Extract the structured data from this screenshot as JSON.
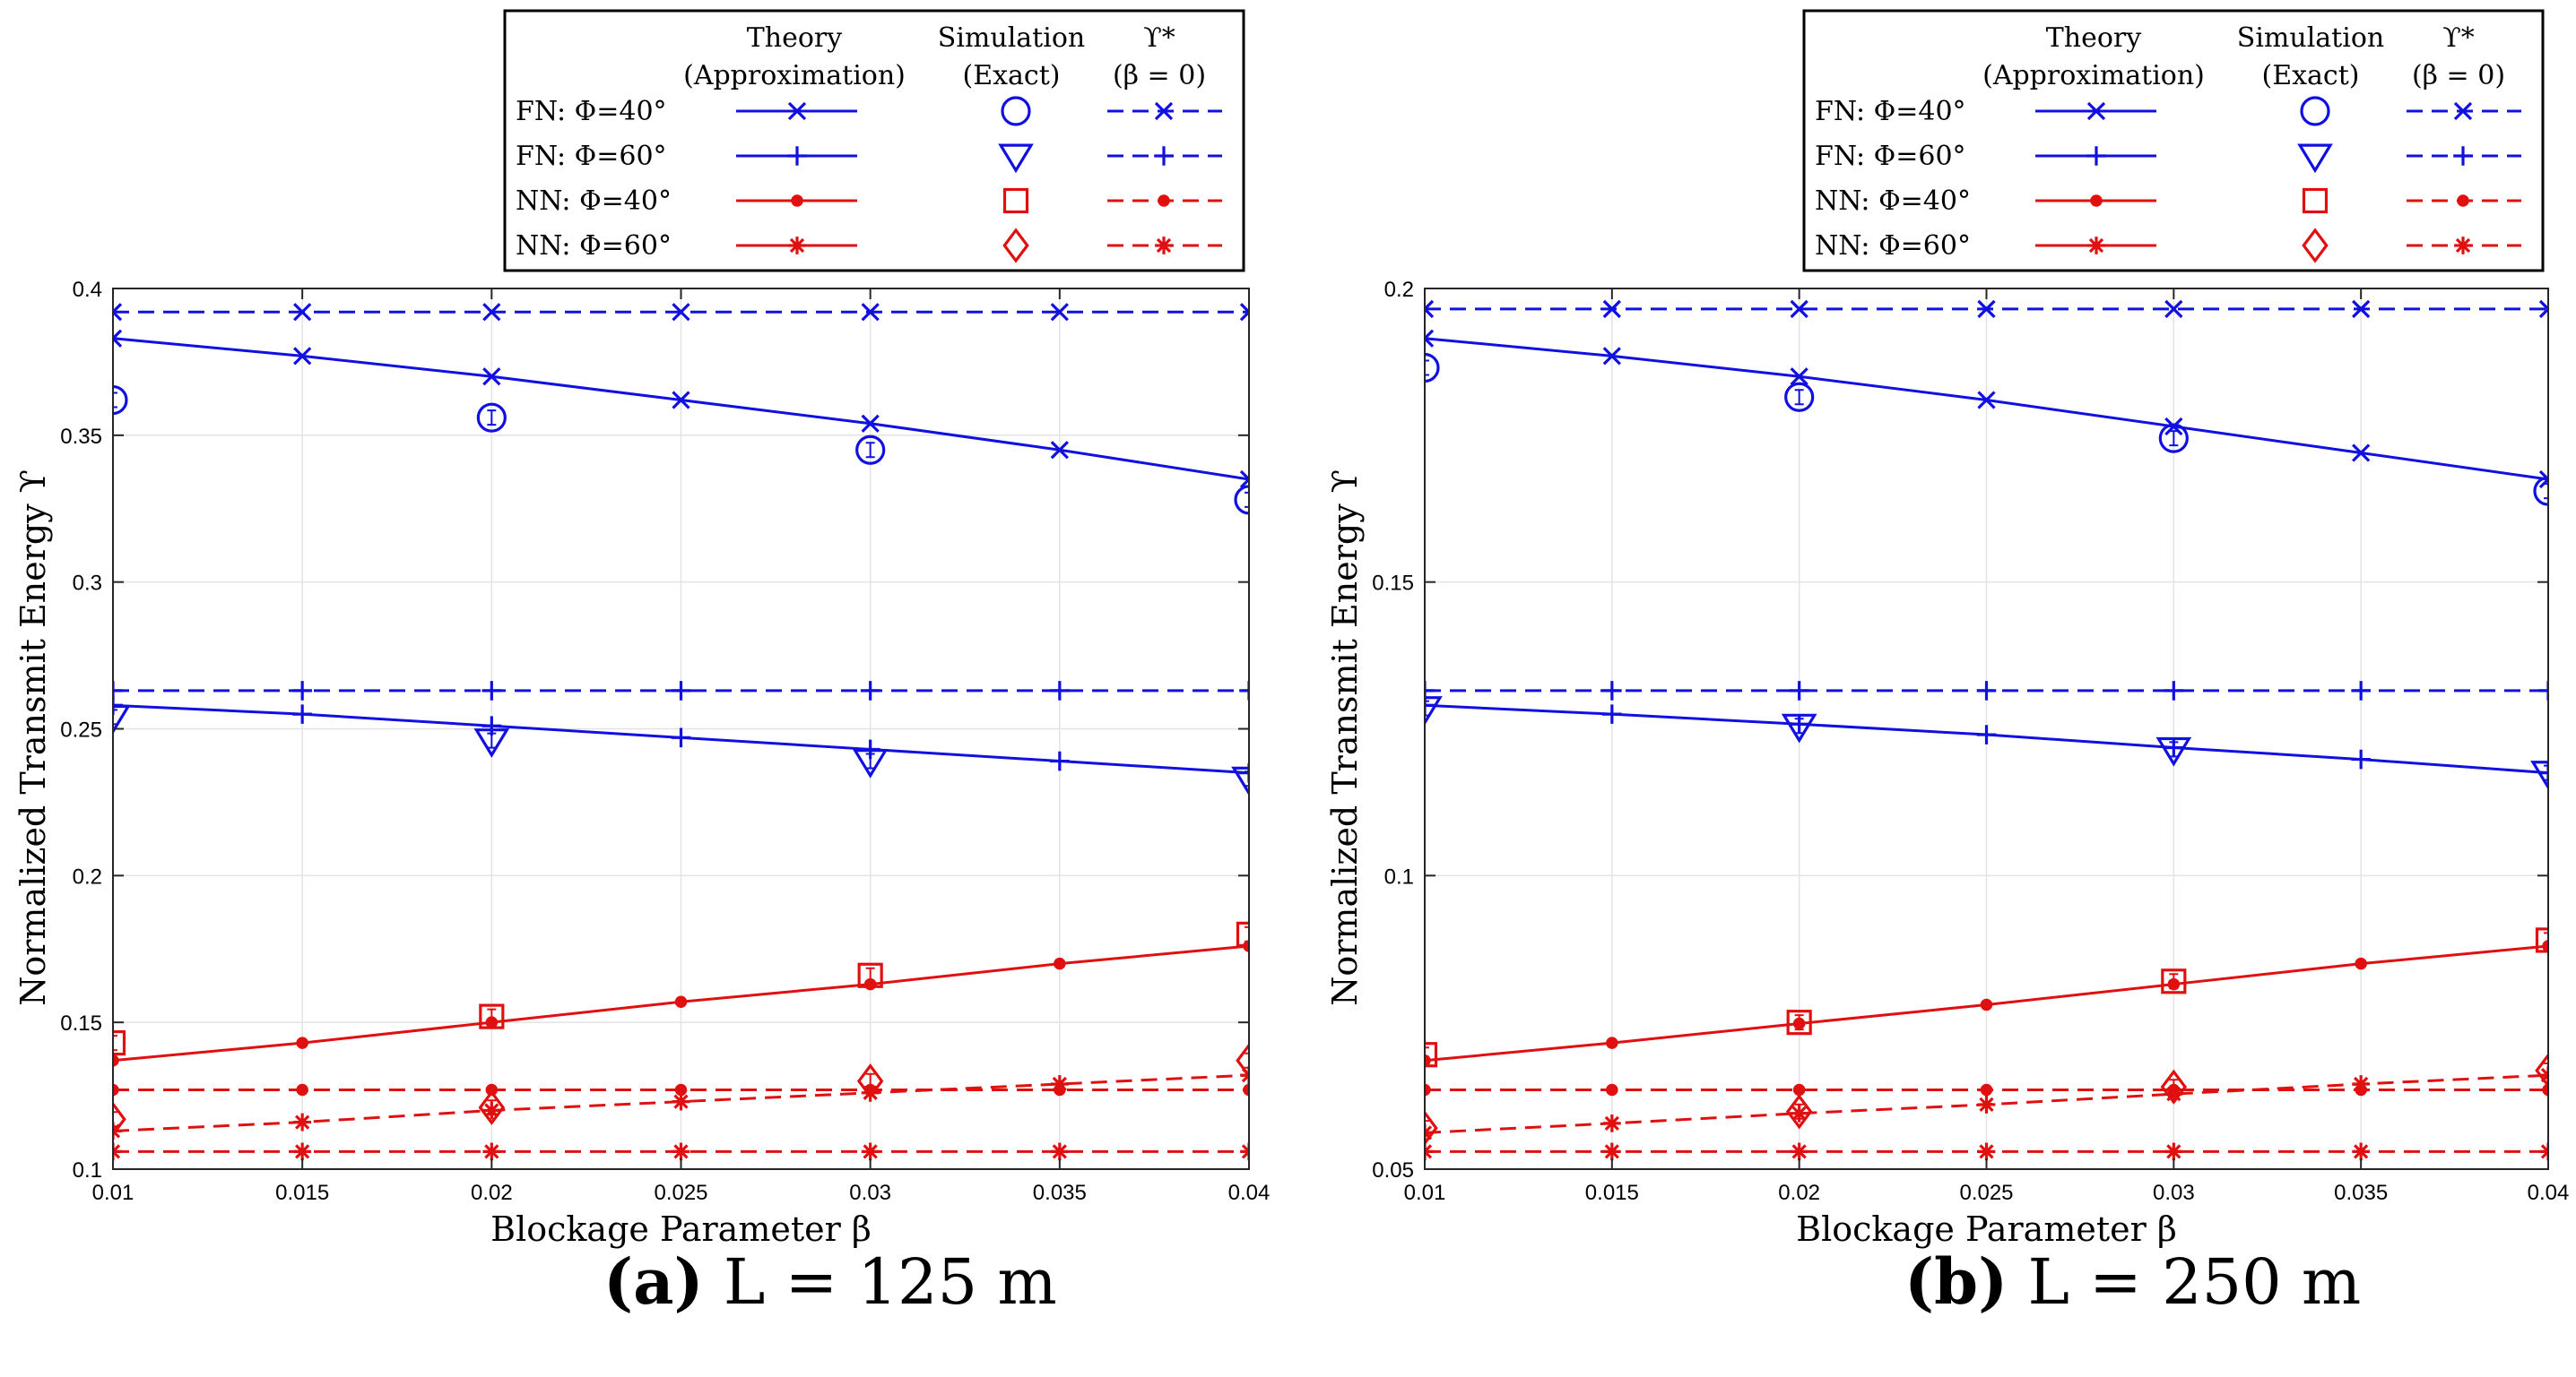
{
  "legend_headers": {
    "theory": [
      "Theory",
      "(Approximation)"
    ],
    "simulation": [
      "Simulation",
      "(Exact)"
    ],
    "ideal": [
      "ϒ*",
      "(β = 0)"
    ]
  },
  "legend_entries": [
    {
      "label": "FN: Φ=40°",
      "color": "#1010e0",
      "theory_marker": "x",
      "sim_marker": "circle",
      "ideal_marker": "x"
    },
    {
      "label": "FN: Φ=60°",
      "color": "#1010e0",
      "theory_marker": "plus",
      "sim_marker": "triangle-down",
      "ideal_marker": "plus"
    },
    {
      "label": "NN: Φ=40°",
      "color": "#e01010",
      "theory_marker": "dot",
      "sim_marker": "square",
      "ideal_marker": "dot"
    },
    {
      "label": "NN: Φ=60°",
      "color": "#e01010",
      "theory_marker": "star",
      "sim_marker": "diamond",
      "ideal_marker": "star"
    }
  ],
  "chart_data": [
    {
      "type": "line",
      "caption_letter": "(a)",
      "caption_rest": "L = 125 m",
      "xlabel": "Blockage Parameter β",
      "ylabel": "Normalized Transmit Energy ϒ",
      "xlim": [
        0.01,
        0.04
      ],
      "ylim": [
        0.1,
        0.4
      ],
      "xticks": [
        0.01,
        0.015,
        0.02,
        0.025,
        0.03,
        0.035,
        0.04
      ],
      "xtick_labels": [
        "0.01",
        "0.015",
        "0.02",
        "0.025",
        "0.03",
        "0.035",
        "0.04"
      ],
      "yticks": [
        0.1,
        0.15,
        0.2,
        0.25,
        0.3,
        0.35,
        0.4
      ],
      "ytick_labels": [
        "0.1",
        "0.15",
        "0.2",
        "0.25",
        "0.3",
        "0.35",
        "0.4"
      ],
      "grid": true,
      "x": [
        0.01,
        0.015,
        0.02,
        0.025,
        0.03,
        0.035,
        0.04
      ],
      "series": [
        {
          "name": "FN: Φ=40° Theory",
          "color": "#1010e0",
          "style": "solid",
          "marker": "x",
          "values": [
            0.383,
            0.377,
            0.37,
            0.362,
            0.354,
            0.345,
            0.335
          ]
        },
        {
          "name": "FN: Φ=60° Theory",
          "color": "#1010e0",
          "style": "solid",
          "marker": "plus",
          "values": [
            0.258,
            0.255,
            0.251,
            0.247,
            0.243,
            0.239,
            0.235
          ]
        },
        {
          "name": "NN: Φ=40° Theory",
          "color": "#e01010",
          "style": "solid",
          "marker": "dot",
          "values": [
            0.137,
            0.143,
            0.15,
            0.157,
            0.163,
            0.17,
            0.176
          ]
        },
        {
          "name": "NN: Φ=60° Theory",
          "color": "#e01010",
          "style": "dashed",
          "marker": "star",
          "values": [
            0.113,
            0.116,
            0.12,
            0.123,
            0.126,
            0.129,
            0.132
          ]
        },
        {
          "name": "FN: Φ=40° ϒ*",
          "color": "#1010e0",
          "style": "dashed",
          "marker": "x",
          "values": [
            0.392,
            0.392,
            0.392,
            0.392,
            0.392,
            0.392,
            0.392
          ]
        },
        {
          "name": "FN: Φ=60° ϒ*",
          "color": "#1010e0",
          "style": "dashed",
          "marker": "plus",
          "values": [
            0.263,
            0.263,
            0.263,
            0.263,
            0.263,
            0.263,
            0.263
          ]
        },
        {
          "name": "NN: Φ=40° ϒ*",
          "color": "#e01010",
          "style": "dashed",
          "marker": "dot",
          "values": [
            0.127,
            0.127,
            0.127,
            0.127,
            0.127,
            0.127,
            0.127
          ]
        },
        {
          "name": "NN: Φ=60° ϒ*",
          "color": "#e01010",
          "style": "dashed",
          "marker": "star",
          "values": [
            0.106,
            0.106,
            0.106,
            0.106,
            0.106,
            0.106,
            0.106
          ]
        }
      ],
      "simulation": [
        {
          "name": "FN: Φ=40° Simulation",
          "color": "#1010e0",
          "marker": "circle",
          "x": [
            0.01,
            0.02,
            0.03,
            0.04
          ],
          "values": [
            0.362,
            0.356,
            0.345,
            0.328
          ]
        },
        {
          "name": "FN: Φ=60° Simulation",
          "color": "#1010e0",
          "marker": "triangle-down",
          "x": [
            0.01,
            0.02,
            0.03,
            0.04
          ],
          "values": [
            0.254,
            0.246,
            0.239,
            0.233
          ]
        },
        {
          "name": "NN: Φ=40° Simulation",
          "color": "#e01010",
          "marker": "square",
          "x": [
            0.01,
            0.02,
            0.03,
            0.04
          ],
          "values": [
            0.143,
            0.152,
            0.166,
            0.18
          ]
        },
        {
          "name": "NN: Φ=60° Simulation",
          "color": "#e01010",
          "marker": "diamond",
          "x": [
            0.01,
            0.02,
            0.03,
            0.04
          ],
          "values": [
            0.117,
            0.121,
            0.13,
            0.137
          ]
        }
      ]
    },
    {
      "type": "line",
      "caption_letter": "(b)",
      "caption_rest": "L = 250 m",
      "xlabel": "Blockage Parameter β",
      "ylabel": "Normalized Transmit Energy ϒ",
      "xlim": [
        0.01,
        0.04
      ],
      "ylim": [
        0.05,
        0.2
      ],
      "xticks": [
        0.01,
        0.015,
        0.02,
        0.025,
        0.03,
        0.035,
        0.04
      ],
      "xtick_labels": [
        "0.01",
        "0.015",
        "0.02",
        "0.025",
        "0.03",
        "0.035",
        "0.04"
      ],
      "yticks": [
        0.05,
        0.1,
        0.15,
        0.2
      ],
      "ytick_labels": [
        "0.05",
        "0.1",
        "0.15",
        "0.2"
      ],
      "grid": true,
      "x": [
        0.01,
        0.015,
        0.02,
        0.025,
        0.03,
        0.035,
        0.04
      ],
      "series": [
        {
          "name": "FN: Φ=40° Theory",
          "color": "#1010e0",
          "style": "solid",
          "marker": "x",
          "values": [
            0.1915,
            0.1885,
            0.185,
            0.181,
            0.1765,
            0.172,
            0.1675
          ]
        },
        {
          "name": "FN: Φ=60° Theory",
          "color": "#1010e0",
          "style": "solid",
          "marker": "plus",
          "values": [
            0.129,
            0.1275,
            0.1258,
            0.124,
            0.1218,
            0.1198,
            0.1175
          ]
        },
        {
          "name": "NN: Φ=40° Theory",
          "color": "#e01010",
          "style": "solid",
          "marker": "dot",
          "values": [
            0.0685,
            0.0715,
            0.0748,
            0.078,
            0.0815,
            0.085,
            0.088
          ]
        },
        {
          "name": "NN: Φ=60° Theory",
          "color": "#e01010",
          "style": "dashed",
          "marker": "star",
          "values": [
            0.0562,
            0.0578,
            0.0595,
            0.061,
            0.0628,
            0.0645,
            0.066
          ]
        },
        {
          "name": "FN: Φ=40° ϒ*",
          "color": "#1010e0",
          "style": "dashed",
          "marker": "x",
          "values": [
            0.1965,
            0.1965,
            0.1965,
            0.1965,
            0.1965,
            0.1965,
            0.1965
          ]
        },
        {
          "name": "FN: Φ=60° ϒ*",
          "color": "#1010e0",
          "style": "dashed",
          "marker": "plus",
          "values": [
            0.1315,
            0.1315,
            0.1315,
            0.1315,
            0.1315,
            0.1315,
            0.1315
          ]
        },
        {
          "name": "NN: Φ=40° ϒ*",
          "color": "#e01010",
          "style": "dashed",
          "marker": "dot",
          "values": [
            0.0635,
            0.0635,
            0.0635,
            0.0635,
            0.0635,
            0.0635,
            0.0635
          ]
        },
        {
          "name": "NN: Φ=60° ϒ*",
          "color": "#e01010",
          "style": "dashed",
          "marker": "star",
          "values": [
            0.053,
            0.053,
            0.053,
            0.053,
            0.053,
            0.053,
            0.053
          ]
        }
      ],
      "simulation": [
        {
          "name": "FN: Φ=40° Simulation",
          "color": "#1010e0",
          "marker": "circle",
          "x": [
            0.01,
            0.02,
            0.03,
            0.04
          ],
          "values": [
            0.1865,
            0.1815,
            0.1745,
            0.1655
          ]
        },
        {
          "name": "FN: Φ=60° Simulation",
          "color": "#1010e0",
          "marker": "triangle-down",
          "x": [
            0.01,
            0.02,
            0.03,
            0.04
          ],
          "values": [
            0.1285,
            0.1255,
            0.1215,
            0.1175
          ]
        },
        {
          "name": "NN: Φ=40° Simulation",
          "color": "#e01010",
          "marker": "square",
          "x": [
            0.01,
            0.02,
            0.03,
            0.04
          ],
          "values": [
            0.0695,
            0.075,
            0.082,
            0.089
          ]
        },
        {
          "name": "NN: Φ=60° Simulation",
          "color": "#e01010",
          "marker": "diamond",
          "x": [
            0.01,
            0.02,
            0.03,
            0.04
          ],
          "values": [
            0.057,
            0.0598,
            0.064,
            0.0668
          ]
        }
      ]
    }
  ]
}
